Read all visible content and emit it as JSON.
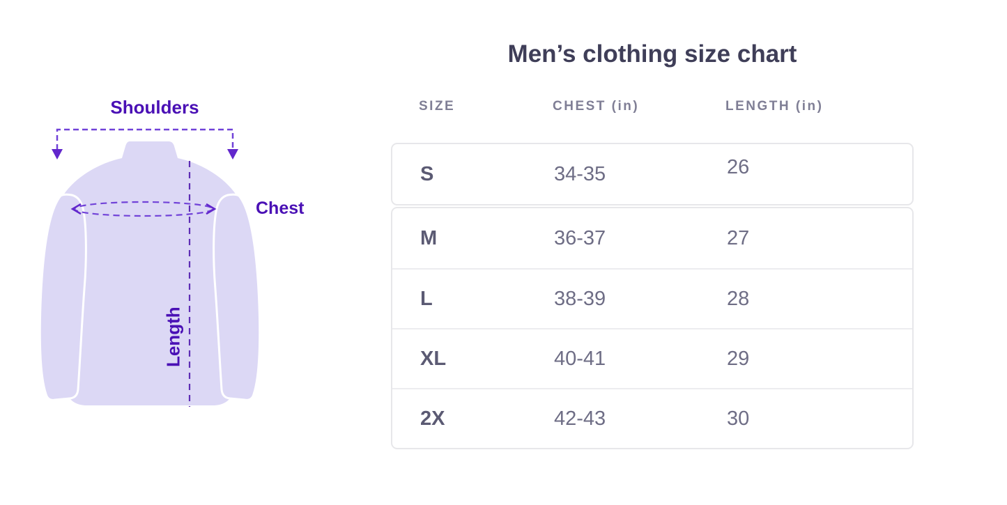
{
  "diagram": {
    "labels": {
      "shoulders": "Shoulders",
      "chest": "Chest",
      "length": "Length"
    },
    "colors": {
      "shirt_fill": "#dcd8f5",
      "annotation_dash": "#7142d8",
      "annotation_arrow": "#6227cc",
      "label_text": "#4a10b5"
    }
  },
  "chart_data": {
    "type": "table",
    "title": "Men’s clothing size chart",
    "columns": [
      "SIZE",
      "CHEST (in)",
      "LENGTH (in)"
    ],
    "rows": [
      [
        "S",
        "34-35",
        "26"
      ],
      [
        "M",
        "36-37",
        "27"
      ],
      [
        "L",
        "38-39",
        "28"
      ],
      [
        "XL",
        "40-41",
        "29"
      ],
      [
        "2X",
        "42-43",
        "30"
      ]
    ],
    "text_colors": {
      "title": "#3f3e58",
      "header": "#7f7e95",
      "size_label": "#5b5a73",
      "value": "#6e6d85"
    }
  }
}
